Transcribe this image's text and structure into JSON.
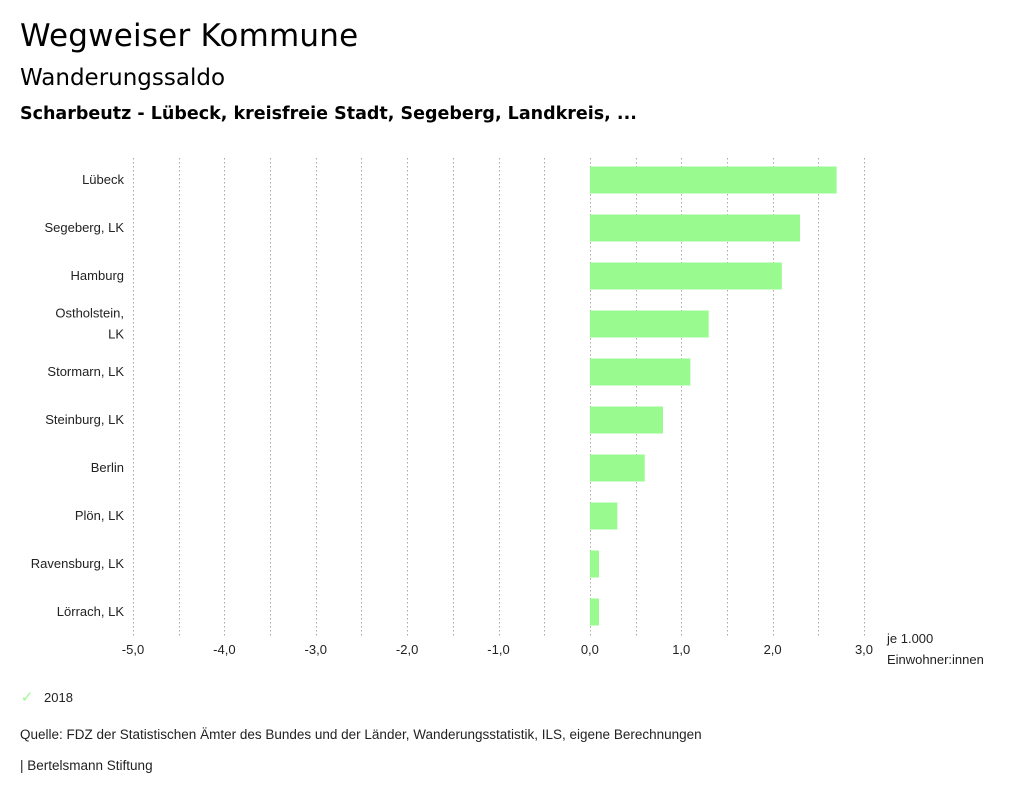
{
  "header": {
    "app_title": "Wegweiser Kommune",
    "chart_title": "Wanderungssaldo",
    "chart_subtitle": "Scharbeutz - Lübeck, kreisfreie Stadt, Segeberg, Landkreis, ..."
  },
  "chart_data": {
    "type": "bar",
    "orientation": "horizontal",
    "title": "Wanderungssaldo",
    "subtitle": "Scharbeutz - Lübeck, kreisfreie Stadt, Segeberg, Landkreis, ...",
    "categories": [
      [
        "Lübeck"
      ],
      [
        "Segeberg, LK"
      ],
      [
        "Hamburg"
      ],
      [
        "Ostholstein,",
        "LK"
      ],
      [
        "Stormarn, LK"
      ],
      [
        "Steinburg, LK"
      ],
      [
        "Berlin"
      ],
      [
        "Plön, LK"
      ],
      [
        "Ravensburg, LK"
      ],
      [
        "Lörrach, LK"
      ]
    ],
    "series": [
      {
        "name": "2018",
        "values": [
          2.7,
          2.3,
          2.1,
          1.3,
          1.1,
          0.8,
          0.6,
          0.3,
          0.1,
          0.1
        ]
      }
    ],
    "xlim": [
      -5,
      3
    ],
    "x_ticks": [
      -5,
      -4,
      -3,
      -2,
      -1,
      0,
      1,
      2,
      3
    ],
    "x_tick_labels": [
      "-5,0",
      "-4,0",
      "-3,0",
      "-2,0",
      "-1,0",
      "0,0",
      "1,0",
      "2,0",
      "3,0"
    ],
    "x_unit_label": [
      "je 1.000",
      "Einwohner:innen"
    ],
    "grid": "vertical-dotted",
    "colors": {
      "bar": "#98fa8f",
      "grid": "#a8a8a8"
    }
  },
  "legend": {
    "icon": "check-icon",
    "label": "2018"
  },
  "footer": {
    "source": "Quelle: FDZ der Statistischen Ämter des Bundes und der Länder, Wanderungsstatistik, ILS, eigene Berechnungen",
    "credit": "| Bertelsmann Stiftung"
  }
}
